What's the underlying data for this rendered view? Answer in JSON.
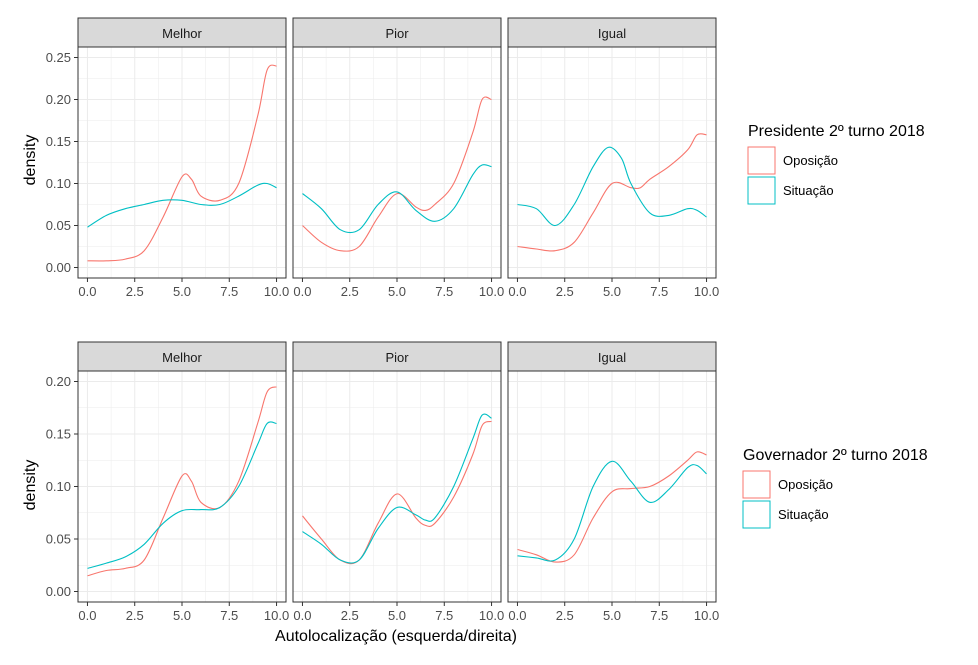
{
  "colors": {
    "Oposição": "#F8766D",
    "Situação": "#00BFC4",
    "strip_bg": "#D9D9D9",
    "grid": "#EBEBEB",
    "frame": "#333333"
  },
  "chart_data": [
    {
      "type": "line",
      "facet_row": "Presidente 2º turno 2018",
      "ylabel": "density",
      "ylim": [
        0,
        0.25
      ],
      "yticks": [
        "0.00",
        "0.05",
        "0.10",
        "0.15",
        "0.20",
        "0.25"
      ],
      "xlim": [
        0,
        10
      ],
      "xticks": [
        "0.0",
        "2.5",
        "5.0",
        "7.5",
        "10.0"
      ],
      "legend": {
        "title": "Presidente 2º turno 2018",
        "entries": [
          "Oposição",
          "Situação"
        ]
      },
      "panels": [
        {
          "title": "Melhor",
          "series": [
            {
              "name": "Oposição",
              "x": [
                0,
                1,
                2,
                3,
                4,
                5,
                5.5,
                6,
                7,
                8,
                9,
                9.5,
                10
              ],
              "values": [
                0.008,
                0.008,
                0.01,
                0.02,
                0.06,
                0.108,
                0.105,
                0.085,
                0.08,
                0.1,
                0.18,
                0.235,
                0.24
              ]
            },
            {
              "name": "Situação",
              "x": [
                0,
                1,
                2,
                3,
                4,
                5,
                6,
                7,
                8,
                9,
                9.5,
                10
              ],
              "values": [
                0.048,
                0.062,
                0.07,
                0.075,
                0.08,
                0.08,
                0.075,
                0.075,
                0.085,
                0.098,
                0.1,
                0.095
              ]
            }
          ]
        },
        {
          "title": "Pior",
          "series": [
            {
              "name": "Oposição",
              "x": [
                0,
                1,
                2,
                3,
                4,
                5,
                6,
                6.5,
                7,
                8,
                9,
                9.5,
                10
              ],
              "values": [
                0.05,
                0.03,
                0.02,
                0.025,
                0.06,
                0.088,
                0.072,
                0.068,
                0.075,
                0.1,
                0.16,
                0.2,
                0.2
              ]
            },
            {
              "name": "Situação",
              "x": [
                0,
                1,
                2,
                3,
                4,
                5,
                6,
                7,
                8,
                9,
                9.5,
                10
              ],
              "values": [
                0.088,
                0.07,
                0.045,
                0.045,
                0.075,
                0.09,
                0.068,
                0.055,
                0.07,
                0.11,
                0.122,
                0.12
              ]
            }
          ]
        },
        {
          "title": "Igual",
          "series": [
            {
              "name": "Oposição",
              "x": [
                0,
                1,
                2,
                3,
                4,
                5,
                6,
                6.5,
                7,
                8,
                9,
                9.5,
                10
              ],
              "values": [
                0.025,
                0.022,
                0.02,
                0.03,
                0.065,
                0.1,
                0.095,
                0.095,
                0.105,
                0.12,
                0.14,
                0.158,
                0.158
              ]
            },
            {
              "name": "Situação",
              "x": [
                0,
                1,
                2,
                3,
                4,
                4.8,
                5.5,
                6,
                7,
                8,
                9,
                9.5,
                10
              ],
              "values": [
                0.075,
                0.07,
                0.05,
                0.075,
                0.12,
                0.143,
                0.13,
                0.1,
                0.065,
                0.062,
                0.07,
                0.068,
                0.06
              ]
            }
          ]
        }
      ]
    },
    {
      "type": "line",
      "facet_row": "Governador 2º turno 2018",
      "ylabel": "density",
      "xlabel": "Autolocalização (esquerda/direita)",
      "ylim": [
        0,
        0.2
      ],
      "yticks": [
        "0.00",
        "0.05",
        "0.10",
        "0.15",
        "0.20"
      ],
      "xlim": [
        0,
        10
      ],
      "xticks": [
        "0.0",
        "2.5",
        "5.0",
        "7.5",
        "10.0"
      ],
      "legend": {
        "title": "Governador 2º turno 2018",
        "entries": [
          "Oposição",
          "Situação"
        ]
      },
      "panels": [
        {
          "title": "Melhor",
          "series": [
            {
              "name": "Oposição",
              "x": [
                0,
                1,
                2,
                3,
                4,
                5,
                5.5,
                6,
                7,
                8,
                9,
                9.5,
                10
              ],
              "values": [
                0.015,
                0.02,
                0.022,
                0.03,
                0.07,
                0.11,
                0.105,
                0.085,
                0.08,
                0.105,
                0.16,
                0.19,
                0.195
              ]
            },
            {
              "name": "Situação",
              "x": [
                0,
                1,
                2,
                3,
                4,
                5,
                6,
                7,
                8,
                9,
                9.5,
                10
              ],
              "values": [
                0.022,
                0.027,
                0.033,
                0.045,
                0.065,
                0.077,
                0.078,
                0.08,
                0.1,
                0.14,
                0.16,
                0.16
              ]
            }
          ]
        },
        {
          "title": "Pior",
          "series": [
            {
              "name": "Oposição",
              "x": [
                0,
                1,
                2,
                3,
                4,
                5,
                6,
                6.5,
                7,
                8,
                9,
                9.5,
                10
              ],
              "values": [
                0.072,
                0.05,
                0.03,
                0.03,
                0.065,
                0.093,
                0.07,
                0.063,
                0.065,
                0.09,
                0.13,
                0.158,
                0.162
              ]
            },
            {
              "name": "Situação",
              "x": [
                0,
                1,
                2,
                3,
                4,
                5,
                6,
                6.5,
                7,
                8,
                9,
                9.5,
                10
              ],
              "values": [
                0.057,
                0.045,
                0.03,
                0.03,
                0.06,
                0.08,
                0.073,
                0.068,
                0.07,
                0.1,
                0.145,
                0.168,
                0.165
              ]
            }
          ]
        },
        {
          "title": "Igual",
          "series": [
            {
              "name": "Oposição",
              "x": [
                0,
                1,
                2,
                3,
                4,
                5,
                6,
                7,
                8,
                9,
                9.5,
                10
              ],
              "values": [
                0.04,
                0.035,
                0.028,
                0.035,
                0.07,
                0.095,
                0.098,
                0.1,
                0.11,
                0.125,
                0.133,
                0.13
              ]
            },
            {
              "name": "Situação",
              "x": [
                0,
                1,
                2,
                3,
                4,
                5,
                6,
                7,
                8,
                9,
                9.5,
                10
              ],
              "values": [
                0.034,
                0.032,
                0.03,
                0.05,
                0.1,
                0.124,
                0.105,
                0.085,
                0.097,
                0.118,
                0.12,
                0.112
              ]
            }
          ]
        }
      ]
    }
  ]
}
